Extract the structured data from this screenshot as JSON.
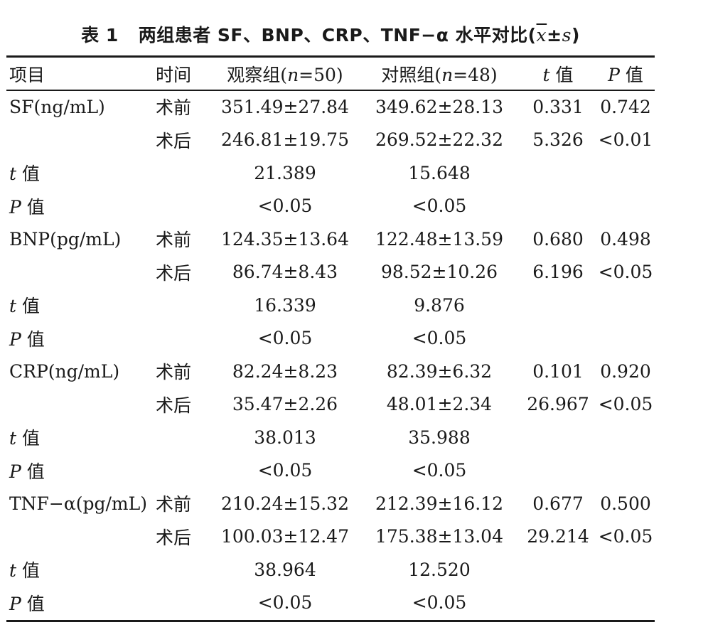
{
  "caption": {
    "number": "表 1",
    "text": "两组患者 SF、BNP、CRP、TNF−α 水平对比",
    "stat_open": "(",
    "stat_xbar": "x",
    "stat_pm": "±",
    "stat_s": "s",
    "stat_close": ")"
  },
  "header": {
    "item": "项目",
    "time": "时间",
    "obs_prefix": "观察组(",
    "obs_n": "n",
    "obs_suffix": "=50)",
    "ctrl_prefix": "对照组(",
    "ctrl_n": "n",
    "ctrl_suffix": "=48)",
    "t_sym": "t",
    "t_word": " 值",
    "p_sym": "P",
    "p_word": " 值"
  },
  "rows": [
    {
      "item": "SF(ng/mL)",
      "time": "术前",
      "obs": "351.49±27.84",
      "ctrl": "349.62±28.13",
      "t": "0.331",
      "p": "0.742"
    },
    {
      "item": "",
      "time": "术后",
      "obs": "246.81±19.75",
      "ctrl": "269.52±22.32",
      "t": "5.326",
      "p": "<0.01"
    },
    {
      "sym": "t",
      "word": " 值",
      "obs": "21.389",
      "ctrl": "15.648"
    },
    {
      "sym": "P",
      "word": " 值",
      "obs": "<0.05",
      "ctrl": "<0.05"
    },
    {
      "item": "BNP(pg/mL)",
      "time": "术前",
      "obs": "124.35±13.64",
      "ctrl": "122.48±13.59",
      "t": "0.680",
      "p": "0.498"
    },
    {
      "item": "",
      "time": "术后",
      "obs": "86.74±8.43",
      "ctrl": "98.52±10.26",
      "t": "6.196",
      "p": "<0.05"
    },
    {
      "sym": "t",
      "word": " 值",
      "obs": "16.339",
      "ctrl": "9.876"
    },
    {
      "sym": "P",
      "word": " 值",
      "obs": "<0.05",
      "ctrl": "<0.05"
    },
    {
      "item": "CRP(ng/mL)",
      "time": "术前",
      "obs": "82.24±8.23",
      "ctrl": "82.39±6.32",
      "t": "0.101",
      "p": "0.920"
    },
    {
      "item": "",
      "time": "术后",
      "obs": "35.47±2.26",
      "ctrl": "48.01±2.34",
      "t": "26.967",
      "p": "<0.05"
    },
    {
      "sym": "t",
      "word": " 值",
      "obs": "38.013",
      "ctrl": "35.988"
    },
    {
      "sym": "P",
      "word": " 值",
      "obs": "<0.05",
      "ctrl": "<0.05"
    },
    {
      "item": "TNF−α(pg/mL)",
      "time": "术前",
      "obs": "210.24±15.32",
      "ctrl": "212.39±16.12",
      "t": "0.677",
      "p": "0.500"
    },
    {
      "item": "",
      "time": "术后",
      "obs": "100.03±12.47",
      "ctrl": "175.38±13.04",
      "t": "29.214",
      "p": "<0.05"
    },
    {
      "sym": "t",
      "word": " 值",
      "obs": "38.964",
      "ctrl": "12.520"
    },
    {
      "sym": "P",
      "word": " 值",
      "obs": "<0.05",
      "ctrl": "<0.05"
    }
  ]
}
